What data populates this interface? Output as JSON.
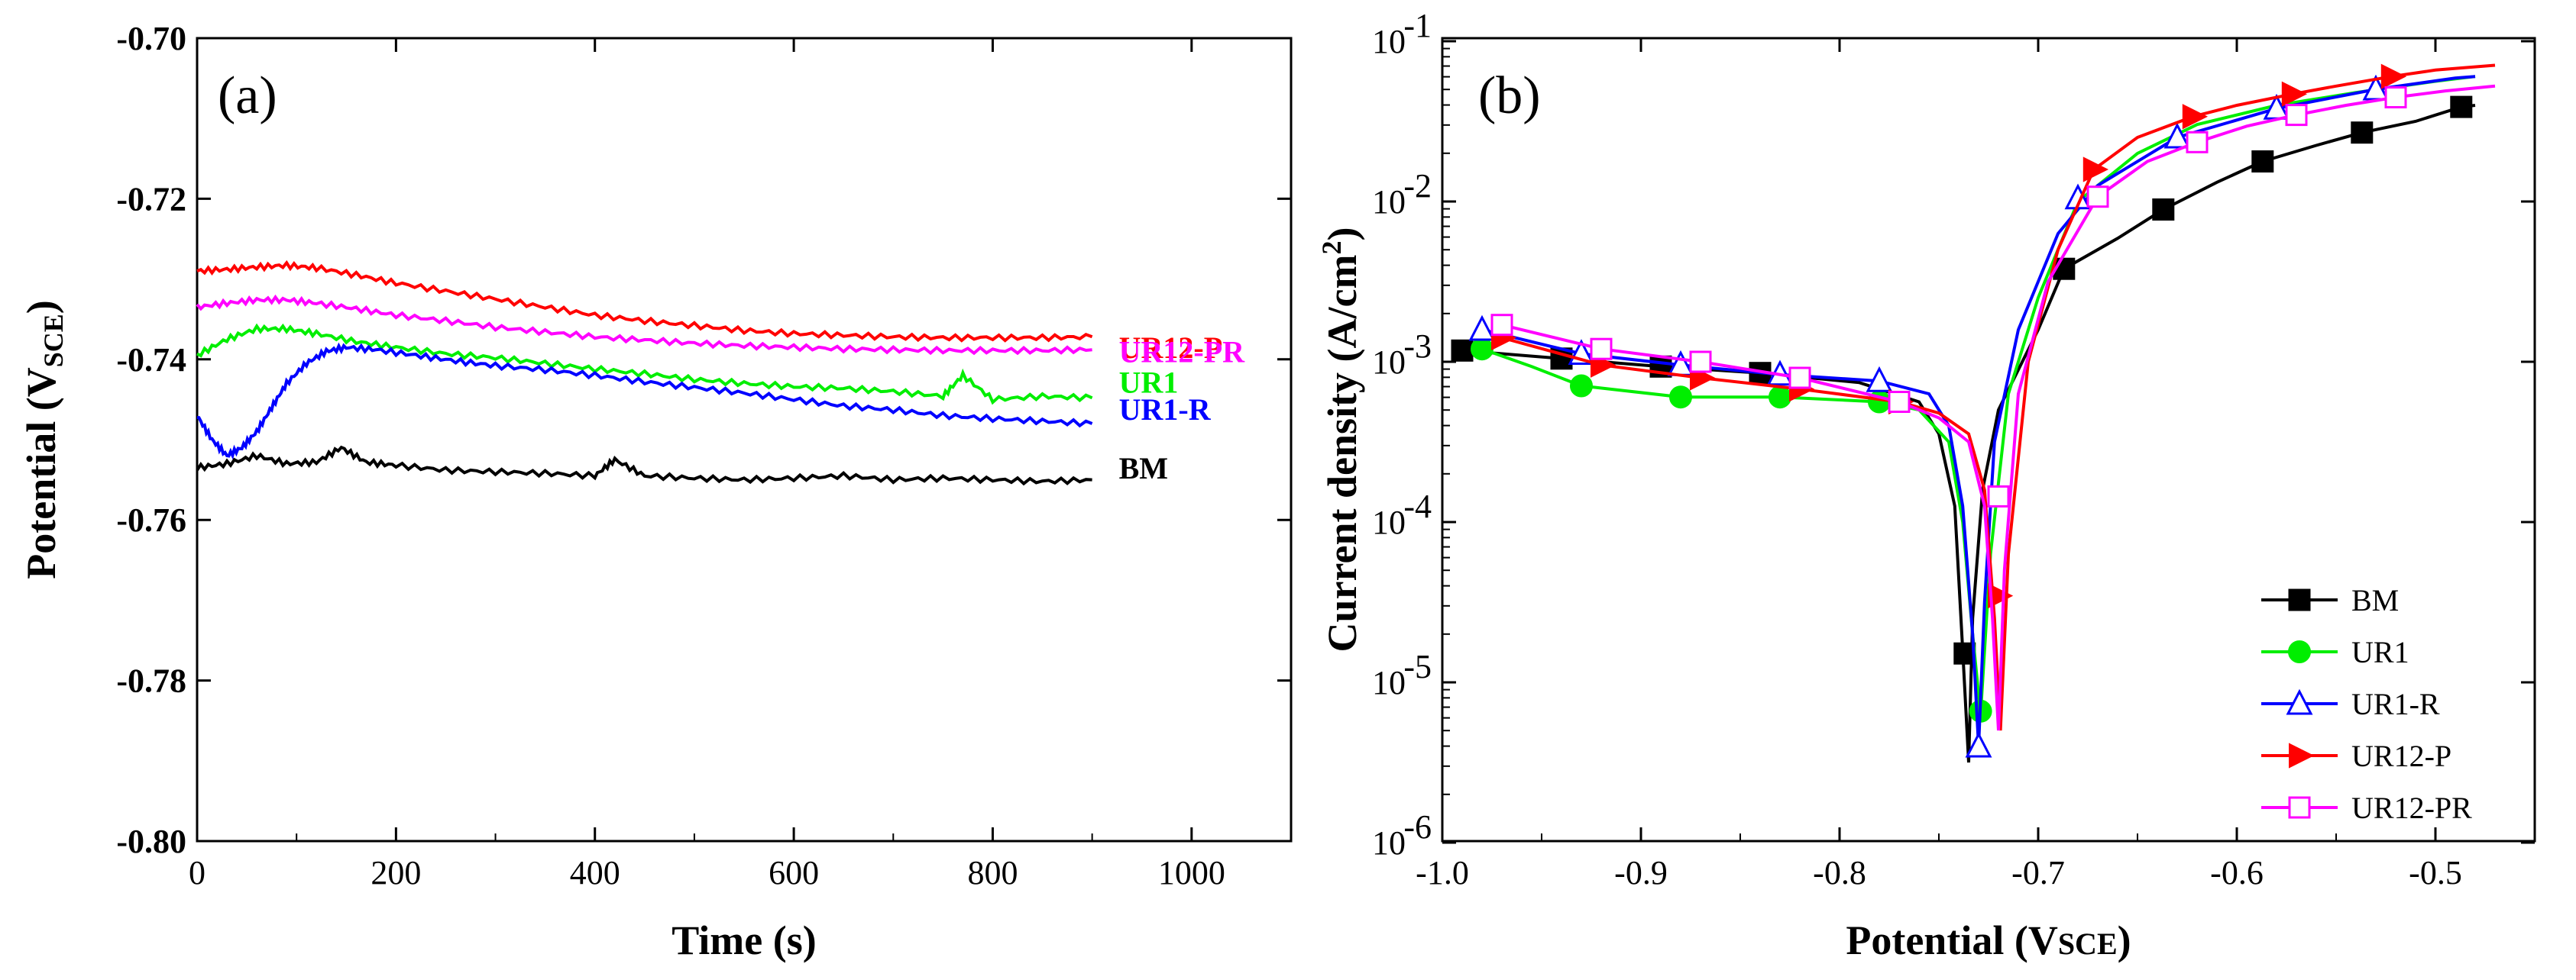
{
  "chart_data": [
    {
      "type": "line",
      "panel_label": "(a)",
      "xlabel": "Time (s)",
      "ylabel": "Potential (V",
      "ylabel_sub": "SCE",
      "ylabel_close": ")",
      "xlim": [
        0,
        1100
      ],
      "ylim": [
        -0.8,
        -0.7
      ],
      "xticks": [
        0,
        200,
        400,
        600,
        800,
        1000
      ],
      "xtick_labels": [
        "0",
        "200",
        "400",
        "600",
        "800",
        "1000"
      ],
      "yticks": [
        -0.7,
        -0.72,
        -0.74,
        -0.76,
        -0.78,
        -0.8
      ],
      "ytick_labels": [
        "-0.70",
        "-0.72",
        "-0.74",
        "-0.76",
        "-0.78",
        "-0.80"
      ],
      "legend_placement": "inline labels at right end of curves",
      "series": [
        {
          "name": "UR12-P",
          "color": "#ff0000",
          "x": [
            0,
            30,
            60,
            90,
            120,
            160,
            200,
            250,
            300,
            350,
            400,
            450,
            500,
            550,
            600,
            650,
            700,
            750,
            800,
            850,
            900
          ],
          "y": [
            -0.729,
            -0.7288,
            -0.7285,
            -0.7283,
            -0.7286,
            -0.7295,
            -0.7305,
            -0.7315,
            -0.7325,
            -0.7335,
            -0.7345,
            -0.7352,
            -0.7358,
            -0.7364,
            -0.7368,
            -0.737,
            -0.7372,
            -0.7373,
            -0.7373,
            -0.7373,
            -0.7372
          ]
        },
        {
          "name": "UR12-PR",
          "color": "#ff00ff",
          "x": [
            0,
            30,
            60,
            90,
            120,
            160,
            200,
            250,
            300,
            350,
            400,
            450,
            500,
            550,
            600,
            650,
            700,
            750,
            800,
            850,
            900
          ],
          "y": [
            -0.7335,
            -0.733,
            -0.7326,
            -0.7326,
            -0.733,
            -0.7337,
            -0.7345,
            -0.7352,
            -0.736,
            -0.7366,
            -0.7372,
            -0.7376,
            -0.738,
            -0.7383,
            -0.7385,
            -0.7387,
            -0.7388,
            -0.7389,
            -0.7389,
            -0.7389,
            -0.7388
          ]
        },
        {
          "name": "UR1",
          "color": "#00ee00",
          "x": [
            0,
            30,
            60,
            90,
            120,
            160,
            200,
            250,
            300,
            350,
            400,
            450,
            500,
            550,
            600,
            650,
            700,
            750,
            770,
            800,
            850,
            900
          ],
          "y": [
            -0.7395,
            -0.7375,
            -0.7362,
            -0.7362,
            -0.7368,
            -0.7378,
            -0.7385,
            -0.7393,
            -0.7398,
            -0.7405,
            -0.7412,
            -0.7418,
            -0.7425,
            -0.743,
            -0.7434,
            -0.7436,
            -0.744,
            -0.7446,
            -0.742,
            -0.745,
            -0.7446,
            -0.7448
          ]
        },
        {
          "name": "UR1-R",
          "color": "#0000ff",
          "x": [
            0,
            15,
            30,
            45,
            60,
            75,
            90,
            110,
            130,
            150,
            180,
            220,
            260,
            300,
            350,
            400,
            450,
            500,
            550,
            600,
            650,
            700,
            750,
            800,
            850,
            900
          ],
          "y": [
            -0.747,
            -0.75,
            -0.752,
            -0.751,
            -0.749,
            -0.746,
            -0.743,
            -0.7405,
            -0.739,
            -0.7385,
            -0.7388,
            -0.7395,
            -0.7402,
            -0.7408,
            -0.7413,
            -0.742,
            -0.7428,
            -0.7435,
            -0.7442,
            -0.745,
            -0.7458,
            -0.7463,
            -0.747,
            -0.7474,
            -0.7477,
            -0.748
          ]
        },
        {
          "name": "BM",
          "color": "#000000",
          "x": [
            0,
            30,
            60,
            90,
            120,
            145,
            170,
            200,
            250,
            300,
            350,
            400,
            420,
            450,
            500,
            550,
            600,
            650,
            700,
            750,
            800,
            850,
            900
          ],
          "y": [
            -0.7535,
            -0.753,
            -0.752,
            -0.753,
            -0.7528,
            -0.751,
            -0.7528,
            -0.7532,
            -0.7538,
            -0.754,
            -0.7542,
            -0.7545,
            -0.7525,
            -0.7545,
            -0.7548,
            -0.755,
            -0.7548,
            -0.7545,
            -0.755,
            -0.7548,
            -0.755,
            -0.7552,
            -0.755
          ]
        }
      ]
    },
    {
      "type": "line",
      "panel_label": "(b)",
      "xlabel": "Potential (V",
      "xlabel_sub": "SCE",
      "xlabel_close": ")",
      "ylabel": "Current density (A/cm",
      "ylabel_sup": "2",
      "ylabel_close": ")",
      "yscale": "log",
      "xlim": [
        -1.0,
        -0.45
      ],
      "ylim": [
        1e-06,
        0.1
      ],
      "xticks": [
        -1.0,
        -0.9,
        -0.8,
        -0.7,
        -0.6,
        -0.5
      ],
      "xtick_labels": [
        "-1.0",
        "-0.9",
        "-0.8",
        "-0.7",
        "-0.6",
        "-0.5"
      ],
      "yticks": [
        -6,
        -5,
        -4,
        -3,
        -2,
        -1
      ],
      "ytick_bases": [
        "10",
        "10",
        "10",
        "10",
        "10",
        "10"
      ],
      "ytick_exps": [
        "-6",
        "-5",
        "-4",
        "-3",
        "-2",
        "-1"
      ],
      "legend_placement": "bottom-right",
      "series": [
        {
          "name": "BM",
          "color": "#000000",
          "marker": "square-filled",
          "x": [
            -0.99,
            -0.94,
            -0.89,
            -0.84,
            -0.79,
            -0.76,
            -0.75,
            -0.742,
            -0.738,
            -0.735,
            -0.733,
            -0.728,
            -0.72,
            -0.7,
            -0.687,
            -0.66,
            -0.637,
            -0.61,
            -0.587,
            -0.56,
            -0.537,
            -0.51,
            -0.487,
            -0.48
          ],
          "y": [
            -2.93,
            -2.98,
            -3.03,
            -3.07,
            -3.13,
            -3.25,
            -3.45,
            -3.9,
            -4.8,
            -5.5,
            -4.6,
            -3.8,
            -3.3,
            -2.8,
            -2.42,
            -2.23,
            -2.05,
            -1.88,
            -1.75,
            -1.65,
            -1.57,
            -1.5,
            -1.41,
            -1.4
          ],
          "markers_x": [
            -0.99,
            -0.94,
            -0.89,
            -0.84,
            -0.737,
            -0.687,
            -0.637,
            -0.587,
            -0.537,
            -0.487
          ],
          "markers_y": [
            -2.93,
            -2.98,
            -3.03,
            -3.07,
            -4.82,
            -2.42,
            -2.05,
            -1.75,
            -1.57,
            -1.41
          ]
        },
        {
          "name": "UR1",
          "color": "#00ee00",
          "marker": "circle-filled",
          "x": [
            -0.98,
            -0.955,
            -0.93,
            -0.88,
            -0.83,
            -0.78,
            -0.76,
            -0.745,
            -0.738,
            -0.733,
            -0.729,
            -0.724,
            -0.715,
            -0.7,
            -0.68,
            -0.65,
            -0.62,
            -0.58,
            -0.54,
            -0.5,
            -0.48
          ],
          "y": [
            -2.92,
            -3.03,
            -3.15,
            -3.22,
            -3.22,
            -3.25,
            -3.3,
            -3.5,
            -4.0,
            -4.7,
            -5.2,
            -4.2,
            -3.2,
            -2.6,
            -2.0,
            -1.7,
            -1.52,
            -1.4,
            -1.32,
            -1.25,
            -1.22
          ],
          "markers_x": [
            -0.98,
            -0.93,
            -0.88,
            -0.83,
            -0.78,
            -0.729
          ],
          "markers_y": [
            -2.92,
            -3.15,
            -3.22,
            -3.22,
            -3.25,
            -5.18
          ]
        },
        {
          "name": "UR1-R",
          "color": "#0000ff",
          "marker": "triangle-open",
          "x": [
            -0.98,
            -0.93,
            -0.88,
            -0.83,
            -0.78,
            -0.755,
            -0.745,
            -0.738,
            -0.733,
            -0.73,
            -0.727,
            -0.722,
            -0.71,
            -0.69,
            -0.67,
            -0.63,
            -0.58,
            -0.53,
            -0.49,
            -0.48
          ],
          "y": [
            -2.8,
            -2.95,
            -3.02,
            -3.08,
            -3.12,
            -3.2,
            -3.4,
            -3.9,
            -4.7,
            -5.4,
            -4.5,
            -3.5,
            -2.8,
            -2.2,
            -1.9,
            -1.6,
            -1.42,
            -1.3,
            -1.23,
            -1.22
          ],
          "markers_x": [
            -0.98,
            -0.93,
            -0.88,
            -0.83,
            -0.78,
            -0.73,
            -0.68,
            -0.63,
            -0.58,
            -0.53
          ],
          "markers_y": [
            -2.8,
            -2.95,
            -3.02,
            -3.08,
            -3.12,
            -5.4,
            -1.98,
            -1.6,
            -1.42,
            -1.3
          ]
        },
        {
          "name": "UR12-P",
          "color": "#ff0000",
          "marker": "triangle-right-filled",
          "x": [
            -0.97,
            -0.92,
            -0.87,
            -0.82,
            -0.77,
            -0.75,
            -0.735,
            -0.727,
            -0.722,
            -0.719,
            -0.715,
            -0.705,
            -0.69,
            -0.672,
            -0.65,
            -0.622,
            -0.6,
            -0.572,
            -0.55,
            -0.522,
            -0.5,
            -0.47
          ],
          "y": [
            -2.85,
            -3.02,
            -3.1,
            -3.17,
            -3.25,
            -3.32,
            -3.45,
            -3.8,
            -4.6,
            -5.3,
            -4.2,
            -3.0,
            -2.3,
            -1.8,
            -1.6,
            -1.47,
            -1.4,
            -1.33,
            -1.28,
            -1.22,
            -1.18,
            -1.15
          ],
          "markers_x": [
            -0.97,
            -0.92,
            -0.87,
            -0.82,
            -0.77,
            -0.72,
            -0.672,
            -0.622,
            -0.572,
            -0.522
          ],
          "markers_y": [
            -2.85,
            -3.02,
            -3.1,
            -3.17,
            -3.25,
            -4.46,
            -1.8,
            -1.47,
            -1.33,
            -1.22
          ]
        },
        {
          "name": "UR12-PR",
          "color": "#ff00ff",
          "marker": "square-open",
          "x": [
            -0.97,
            -0.92,
            -0.87,
            -0.82,
            -0.77,
            -0.75,
            -0.735,
            -0.727,
            -0.723,
            -0.72,
            -0.717,
            -0.71,
            -0.695,
            -0.67,
            -0.645,
            -0.62,
            -0.595,
            -0.57,
            -0.545,
            -0.52,
            -0.495,
            -0.47
          ],
          "y": [
            -2.77,
            -2.92,
            -3.0,
            -3.1,
            -3.25,
            -3.35,
            -3.5,
            -3.9,
            -4.6,
            -5.3,
            -4.3,
            -3.2,
            -2.5,
            -1.97,
            -1.75,
            -1.63,
            -1.53,
            -1.46,
            -1.4,
            -1.35,
            -1.31,
            -1.28
          ],
          "markers_x": [
            -0.97,
            -0.92,
            -0.87,
            -0.82,
            -0.77,
            -0.72,
            -0.67,
            -0.62,
            -0.57,
            -0.52
          ],
          "markers_y": [
            -2.77,
            -2.92,
            -3.0,
            -3.1,
            -3.25,
            -3.84,
            -1.97,
            -1.63,
            -1.46,
            -1.35
          ]
        }
      ]
    }
  ]
}
